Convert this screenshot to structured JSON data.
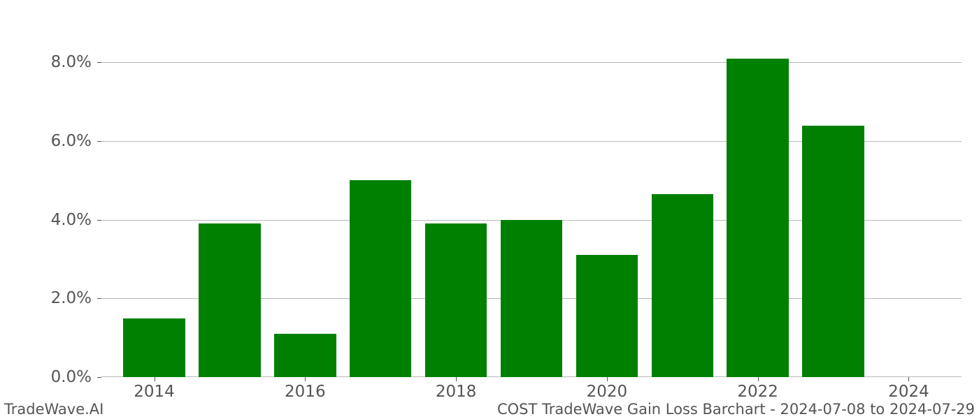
{
  "chart": {
    "type": "bar",
    "background_color": "#ffffff",
    "grid_color": "#b8b8b8",
    "axis_label_color": "#555555",
    "tick_fontsize": 23,
    "footer_fontsize": 21,
    "years": [
      2014,
      2015,
      2016,
      2017,
      2018,
      2019,
      2020,
      2021,
      2022,
      2023,
      2024
    ],
    "values_pct": [
      1.5,
      3.9,
      1.1,
      5.0,
      3.9,
      4.0,
      3.1,
      4.65,
      8.1,
      6.4,
      0.0
    ],
    "bar_color": "#008000",
    "bar_width_years": 0.82,
    "xlim": [
      2013.3,
      2024.7
    ],
    "ylim": [
      0,
      8.7
    ],
    "ytick_step": 2.0,
    "ytick_format_suffix": "%",
    "ytick_decimals": 1,
    "xtick_step": 2,
    "xtick_start": 2014,
    "xtick_end": 2024
  },
  "footer": {
    "left": "TradeWave.AI",
    "right": "COST TradeWave Gain Loss Barchart - 2024-07-08 to 2024-07-29"
  }
}
